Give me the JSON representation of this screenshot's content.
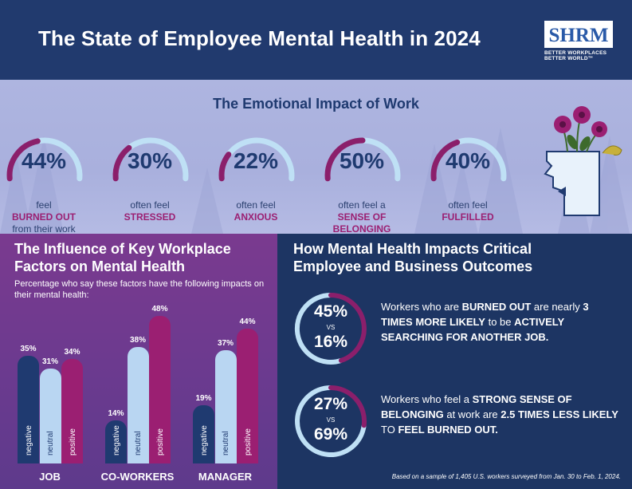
{
  "header": {
    "title": "The State of Employee Mental Health in 2024",
    "logo_text": "SHRM",
    "logo_tagline": "BETTER WORKPLACES\nBETTER WORLD™"
  },
  "emotional": {
    "title": "The Emotional Impact of Work",
    "stats": [
      {
        "value": "44%",
        "fraction": 0.44,
        "pre": "feel",
        "bold": "BURNED OUT",
        "post": "from their work"
      },
      {
        "value": "30%",
        "fraction": 0.3,
        "pre": "often feel",
        "bold": "STRESSED",
        "post": ""
      },
      {
        "value": "22%",
        "fraction": 0.22,
        "pre": "often feel",
        "bold": "ANXIOUS",
        "post": ""
      },
      {
        "value": "50%",
        "fraction": 0.5,
        "pre": "often feel a",
        "bold": "SENSE OF BELONGING",
        "post": ""
      },
      {
        "value": "40%",
        "fraction": 0.4,
        "pre": "often feel",
        "bold": "FULFILLED",
        "post": ""
      }
    ]
  },
  "factors": {
    "title": "The Influence of Key Workplace Factors on Mental Health",
    "subtitle": "Percentage who say these factors have the following impacts on their mental health:",
    "groups": [
      {
        "name": "JOB",
        "bars": [
          {
            "kind": "negative",
            "label": "negative",
            "value": 35,
            "display": "35%"
          },
          {
            "kind": "neutral",
            "label": "neutral",
            "value": 31,
            "display": "31%"
          },
          {
            "kind": "positive",
            "label": "positive",
            "value": 34,
            "display": "34%"
          }
        ]
      },
      {
        "name": "CO-WORKERS",
        "bars": [
          {
            "kind": "negative",
            "label": "negative",
            "value": 14,
            "display": "14%"
          },
          {
            "kind": "neutral",
            "label": "neutral",
            "value": 38,
            "display": "38%"
          },
          {
            "kind": "positive",
            "label": "positive",
            "value": 48,
            "display": "48%"
          }
        ]
      },
      {
        "name": "MANAGER",
        "bars": [
          {
            "kind": "negative",
            "label": "negative",
            "value": 19,
            "display": "19%"
          },
          {
            "kind": "neutral",
            "label": "neutral",
            "value": 37,
            "display": "37%"
          },
          {
            "kind": "positive",
            "label": "positive",
            "value": 44,
            "display": "44%"
          }
        ]
      }
    ]
  },
  "outcomes": {
    "title": "How Mental Health Impacts Critical Employee and Business Outcomes",
    "items": [
      {
        "a": "45%",
        "vs": "VS",
        "b": "16%",
        "fraction": 0.45,
        "parts": [
          [
            "Workers who are ",
            false
          ],
          [
            "BURNED OUT",
            true
          ],
          [
            " are nearly ",
            false
          ],
          [
            "3 TIMES MORE LIKELY",
            true
          ],
          [
            " to be ",
            false
          ],
          [
            "ACTIVELY SEARCHING FOR ANOTHER JOB.",
            true
          ]
        ]
      },
      {
        "a": "27%",
        "vs": "VS",
        "b": "69%",
        "fraction": 0.27,
        "parts": [
          [
            "Workers who feel a ",
            false
          ],
          [
            "STRONG SENSE OF BELONGING",
            true
          ],
          [
            " at work are ",
            false
          ],
          [
            "2.5 TIMES LESS LIKELY",
            true
          ],
          [
            " TO ",
            false
          ],
          [
            "FEEL BURNED OUT.",
            true
          ]
        ]
      }
    ],
    "note": "Based on a sample of 1,405 U.S. workers surveyed from Jan. 30 to Feb. 1, 2024."
  },
  "colors": {
    "negative": "#1f3a70",
    "neutral": "#b9d6f2",
    "positive": "#9b1f72",
    "arc_accent": "#8b1f6b",
    "arc_track": "#bfe0f5"
  }
}
